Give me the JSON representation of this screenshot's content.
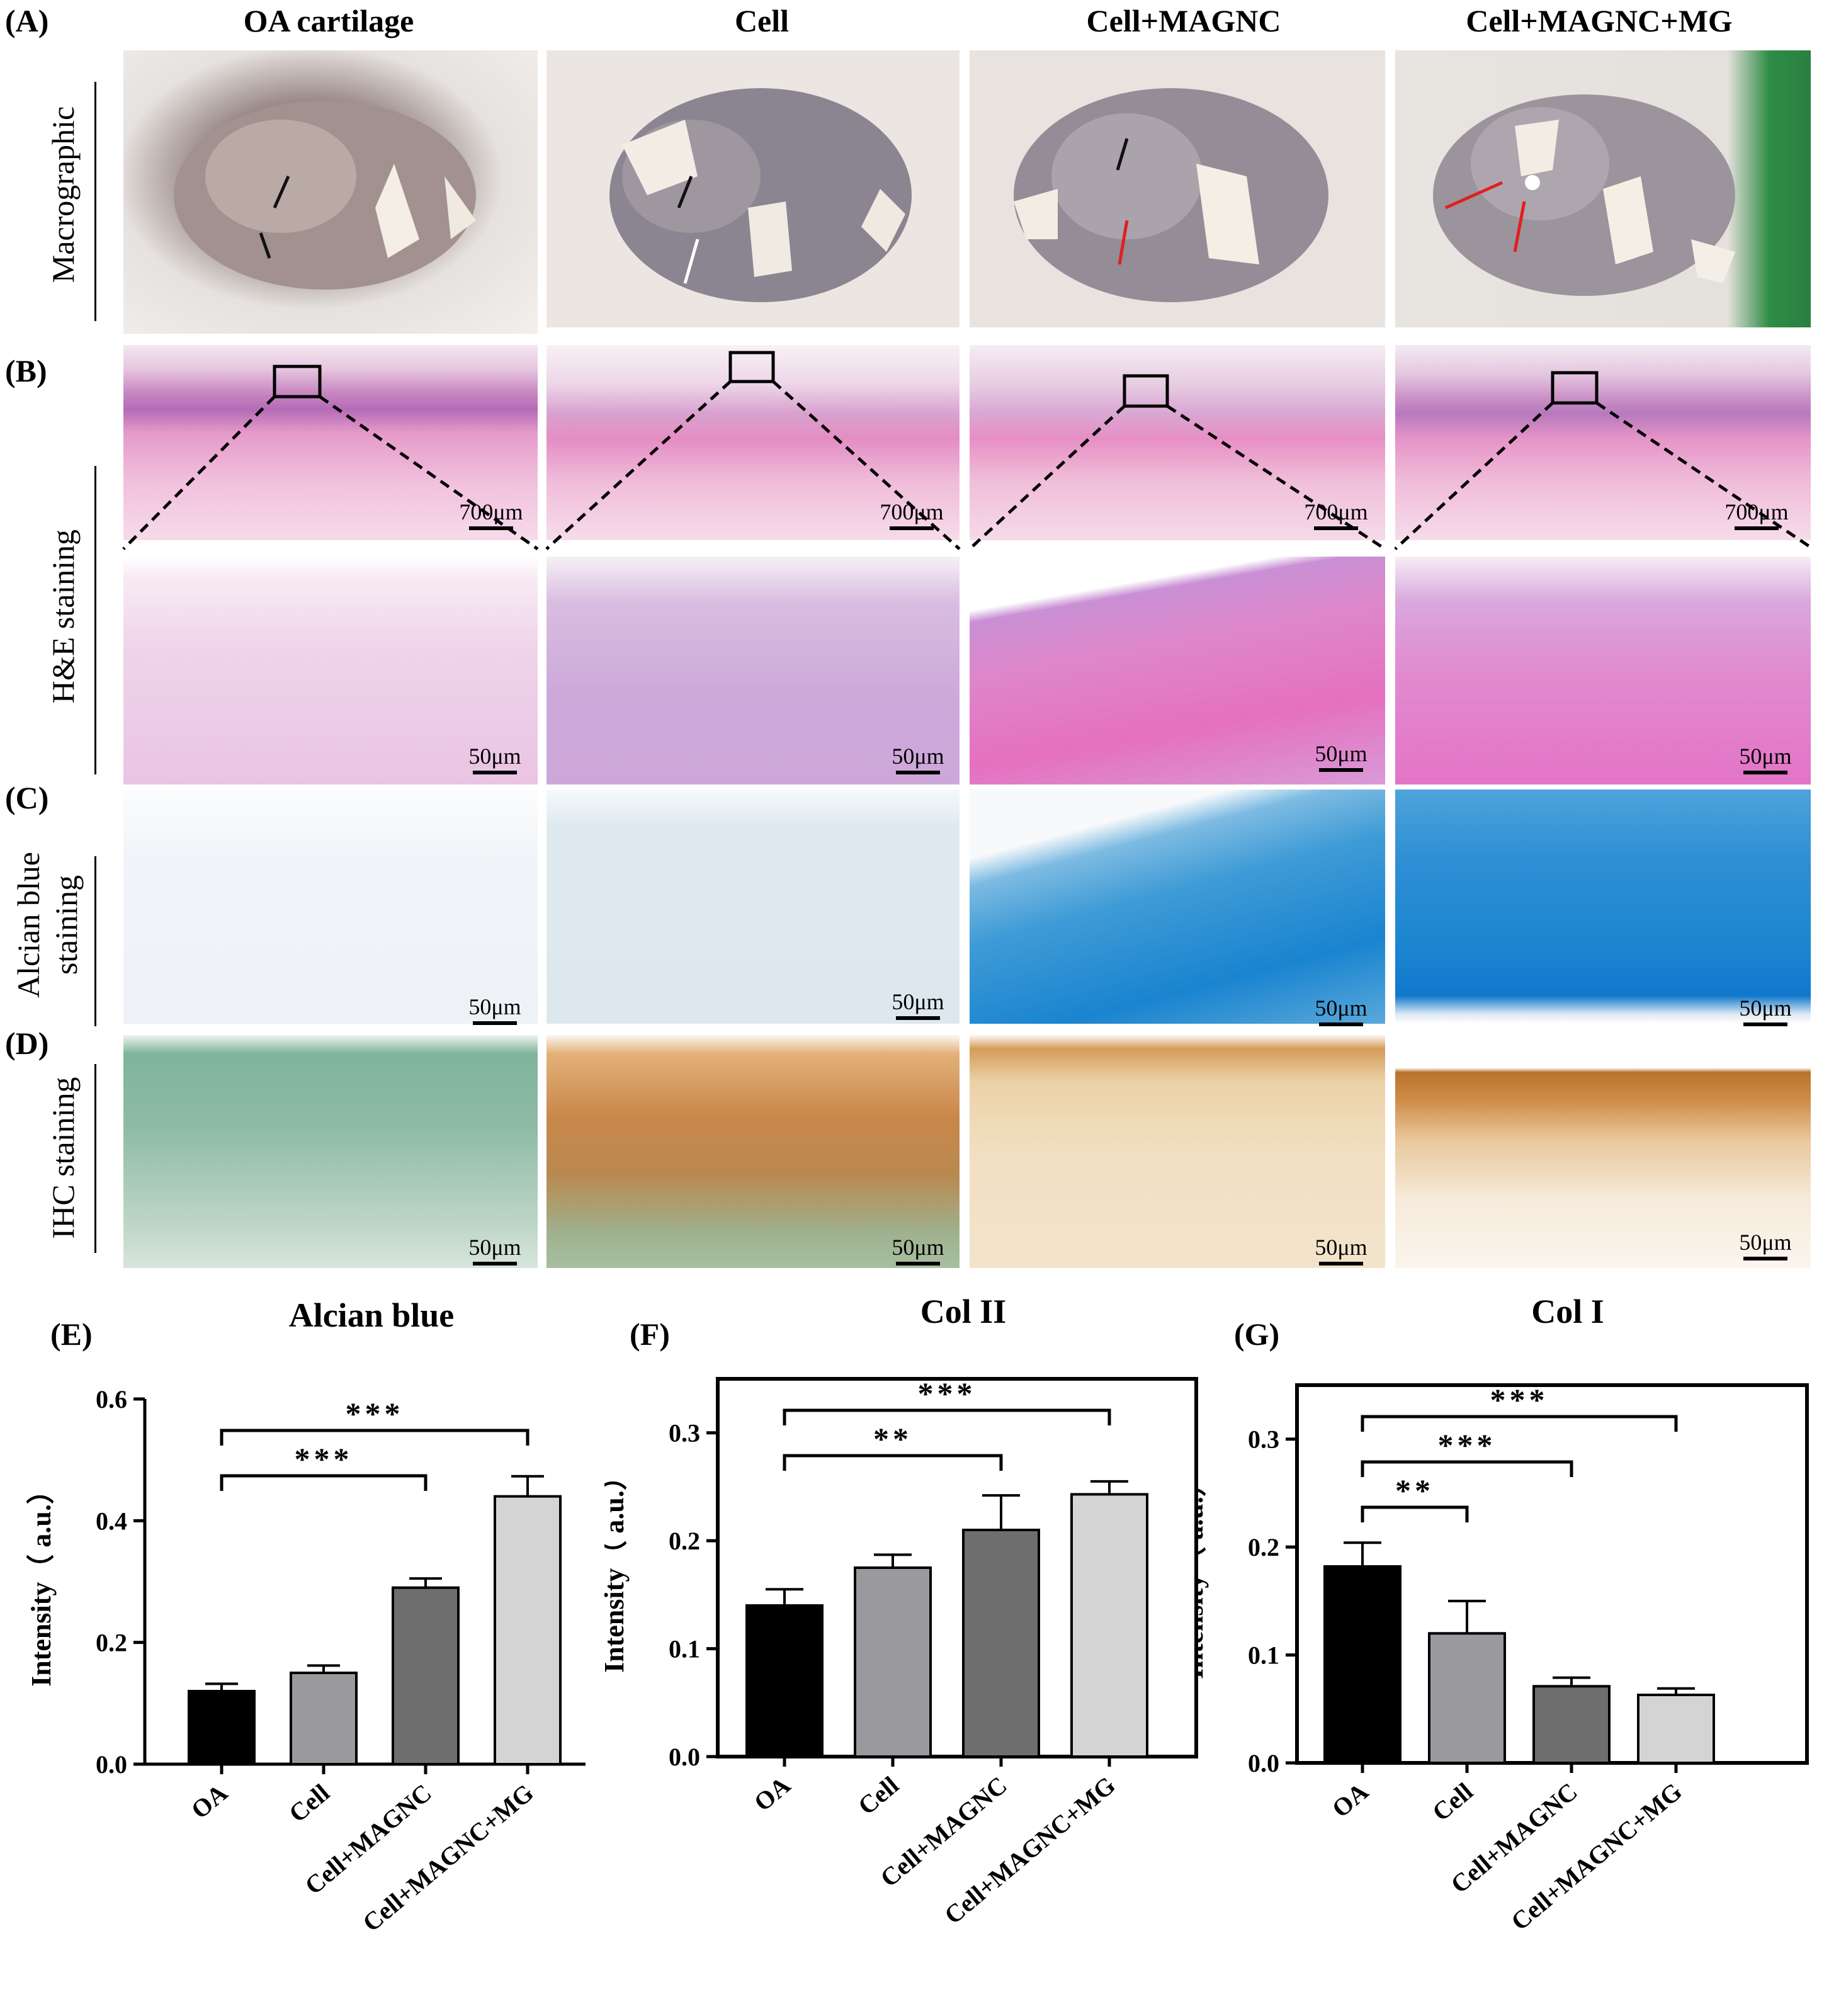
{
  "panel_labels": {
    "A": "(A)",
    "B": "(B)",
    "C": "(C)",
    "D": "(D)",
    "E": "(E)",
    "F": "(F)",
    "G": "(G)"
  },
  "column_titles": [
    "OA cartilage",
    "Cell",
    "Cell+MAGNC",
    "Cell+MAGNC+MG"
  ],
  "row_labels": {
    "macro": "Macrographic",
    "he": "H&E staining",
    "alcian_line1": "Alcian blue",
    "alcian_line2": "staining",
    "ihc": "IHC staining"
  },
  "scale_bars": {
    "large": "700μm",
    "small": "50μm"
  },
  "colors": {
    "oa": "#000000",
    "cell": "#9a9a9e",
    "magnc": "#6e6e6e",
    "mg": "#d4d4d4",
    "arrow_red": "#e02020",
    "arrow_white": "#ffffff",
    "arrow_black": "#111111"
  },
  "chart_data": [
    {
      "type": "bar",
      "title": "Alcian blue",
      "ylabel": "Intensity（ a.u.）",
      "categories": [
        "OA",
        "Cell",
        "Cell+MAGNC",
        "Cell+MAGNC+MG"
      ],
      "values": [
        0.12,
        0.15,
        0.29,
        0.44
      ],
      "errors": [
        0.012,
        0.012,
        0.015,
        0.033
      ],
      "ylim": [
        0,
        0.6
      ],
      "yticks": [
        "0.0",
        "0.2",
        "0.4",
        "0.6"
      ],
      "significance": [
        {
          "from": 0,
          "to": 2,
          "label": "***"
        },
        {
          "from": 0,
          "to": 3,
          "label": "***"
        }
      ]
    },
    {
      "type": "bar",
      "title": "Col II",
      "ylabel": "Intensity（ a.u.）",
      "categories": [
        "OA",
        "Cell",
        "Cell+MAGNC",
        "Cell+MAGNC+MG"
      ],
      "values": [
        0.14,
        0.175,
        0.21,
        0.243
      ],
      "errors": [
        0.015,
        0.012,
        0.032,
        0.012
      ],
      "ylim": [
        0,
        0.35
      ],
      "yticks": [
        "0.0",
        "0.1",
        "0.2",
        "0.3"
      ],
      "significance": [
        {
          "from": 0,
          "to": 2,
          "label": "**"
        },
        {
          "from": 0,
          "to": 3,
          "label": "***"
        }
      ]
    },
    {
      "type": "bar",
      "title": "Col I",
      "ylabel": "Intensity（ a.u.）",
      "categories": [
        "OA",
        "Cell",
        "Cell+MAGNC",
        "Cell+MAGNC+MG"
      ],
      "values": [
        0.182,
        0.12,
        0.071,
        0.063
      ],
      "errors": [
        0.022,
        0.03,
        0.008,
        0.006
      ],
      "ylim": [
        0,
        0.35
      ],
      "yticks": [
        "0.0",
        "0.1",
        "0.2",
        "0.3"
      ],
      "significance": [
        {
          "from": 0,
          "to": 1,
          "label": "**"
        },
        {
          "from": 0,
          "to": 2,
          "label": "***"
        },
        {
          "from": 0,
          "to": 3,
          "label": "***"
        }
      ]
    }
  ]
}
